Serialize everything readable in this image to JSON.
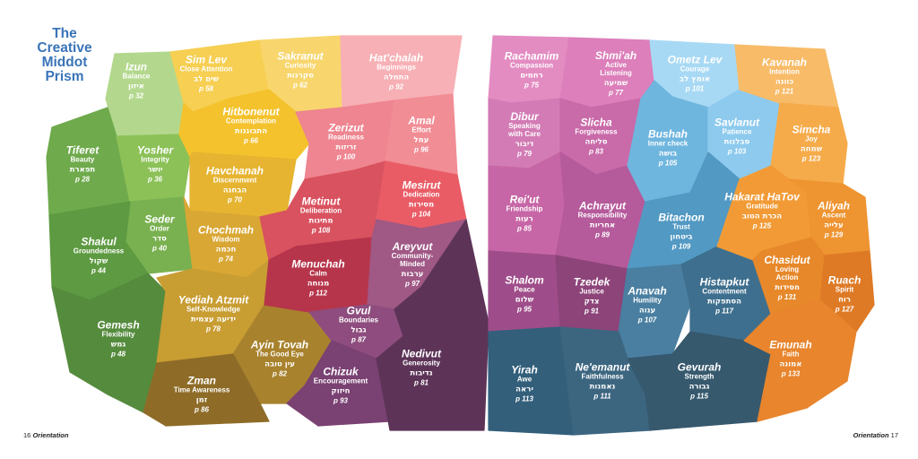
{
  "title_lines": [
    "The",
    "Creative",
    "Middot",
    "Prism"
  ],
  "footer": {
    "left_number": "16",
    "left_label": "Orientation",
    "right_label": "Orientation",
    "right_number": "17"
  },
  "cells": [
    {
      "id": "izun",
      "name": "Izun",
      "english": [
        "Balance"
      ],
      "hebrew": "איזון",
      "page": "p 32",
      "color": "#b3d88d"
    },
    {
      "id": "tiferet",
      "name": "Tiferet",
      "english": [
        "Beauty"
      ],
      "hebrew": "תפארת",
      "page": "p 28",
      "color": "#6faa4c"
    },
    {
      "id": "yosher",
      "name": "Yosher",
      "english": [
        "Integrity"
      ],
      "hebrew": "יושר",
      "page": "p 36",
      "color": "#8cc158"
    },
    {
      "id": "seder",
      "name": "Seder",
      "english": [
        "Order"
      ],
      "hebrew": "סדר",
      "page": "p 40",
      "color": "#79b150"
    },
    {
      "id": "shakul",
      "name": "Shakul",
      "english": [
        "Groundedness"
      ],
      "hebrew": "שקול",
      "page": "p 44",
      "color": "#5d9a41"
    },
    {
      "id": "gemesh",
      "name": "Gemesh",
      "english": [
        "Flexibility"
      ],
      "hebrew": "גמש",
      "page": "p 48",
      "color": "#558b3d"
    },
    {
      "id": "simlev",
      "name": "Sim Lev",
      "english": [
        "Close Attention"
      ],
      "hebrew": "שים לב",
      "page": "p 58",
      "color": "#f6cf53"
    },
    {
      "id": "sakranut",
      "name": "Sakranut",
      "english": [
        "Curiosity"
      ],
      "hebrew": "סקרנות",
      "page": "p 62",
      "color": "#f8d66d"
    },
    {
      "id": "hitbonenut",
      "name": "Hitbonenut",
      "english": [
        "Contemplation"
      ],
      "hebrew": "התבוננות",
      "page": "p 66",
      "color": "#f4c22d"
    },
    {
      "id": "havchanah",
      "name": "Havchanah",
      "english": [
        "Discernment"
      ],
      "hebrew": "הבחנה",
      "page": "p 70",
      "color": "#e6b431"
    },
    {
      "id": "chochmah",
      "name": "Chochmah",
      "english": [
        "Wisdom"
      ],
      "hebrew": "חכמה",
      "page": "p 74",
      "color": "#d9a734"
    },
    {
      "id": "yediah",
      "name": "Yediah Atzmit",
      "english": [
        "Self-Knowledge"
      ],
      "hebrew": "ידיעה עצמית",
      "page": "p 78",
      "color": "#c89d32"
    },
    {
      "id": "ayintovah",
      "name": "Ayin Tovah",
      "english": [
        "The Good Eye"
      ],
      "hebrew": "עין טובה",
      "page": "p 82",
      "color": "#a8822d"
    },
    {
      "id": "zman",
      "name": "Zman",
      "english": [
        "Time Awareness"
      ],
      "hebrew": "זמן",
      "page": "p 86",
      "color": "#8e6c27"
    },
    {
      "id": "hatchalah",
      "name": "Hat'chalah",
      "english": [
        "Beginnings"
      ],
      "hebrew": "התחלה",
      "page": "p 92",
      "color": "#f7b0b5"
    },
    {
      "id": "zerizut",
      "name": "Zerizut",
      "english": [
        "Readiness"
      ],
      "hebrew": "זריזות",
      "page": "p 100",
      "color": "#ee8590"
    },
    {
      "id": "amal",
      "name": "Amal",
      "english": [
        "Effort"
      ],
      "hebrew": "עמל",
      "page": "p 96",
      "color": "#f18d95"
    },
    {
      "id": "metinut",
      "name": "Metinut",
      "english": [
        "Deliberation"
      ],
      "hebrew": "מתינות",
      "page": "p 108",
      "color": "#d9525f"
    },
    {
      "id": "mesirut",
      "name": "Mesirut",
      "english": [
        "Dedication"
      ],
      "hebrew": "מסירות",
      "page": "p 104",
      "color": "#e95c66"
    },
    {
      "id": "menuchah",
      "name": "Menuchah",
      "english": [
        "Calm"
      ],
      "hebrew": "מנוחה",
      "page": "p 112",
      "color": "#b6354b"
    },
    {
      "id": "areyvut",
      "name": "Areyvut",
      "english": [
        "Community-",
        "Minded"
      ],
      "hebrew": "ערבות",
      "page": "p 97",
      "color": "#a05885"
    },
    {
      "id": "gvul",
      "name": "Gvul",
      "english": [
        "Boundaries"
      ],
      "hebrew": "גבול",
      "page": "p 87",
      "color": "#8e4d7e"
    },
    {
      "id": "chizuk",
      "name": "Chizuk",
      "english": [
        "Encouragement"
      ],
      "hebrew": "חיזוק",
      "page": "p 93",
      "color": "#7a4173"
    },
    {
      "id": "nedivut",
      "name": "Nedivut",
      "english": [
        "Generosity"
      ],
      "hebrew": "נדיבות",
      "page": "p 81",
      "color": "#5d3458"
    },
    {
      "id": "rachamim",
      "name": "Rachamim",
      "english": [
        "Compassion"
      ],
      "hebrew": "רחמים",
      "page": "p 75",
      "color": "#e38cc2"
    },
    {
      "id": "shmiah",
      "name": "Shmi'ah",
      "english": [
        "Active",
        "Listening"
      ],
      "hebrew": "שמיעה",
      "page": "p 77",
      "color": "#dc7fba"
    },
    {
      "id": "dibur",
      "name": "Dibur",
      "english": [
        "Speaking",
        "with Care"
      ],
      "hebrew": "דיבור",
      "page": "p 79",
      "color": "#d37bb5"
    },
    {
      "id": "slicha",
      "name": "Slicha",
      "english": [
        "Forgiveness"
      ],
      "hebrew": "סליחה",
      "page": "p 83",
      "color": "#c96aa9"
    },
    {
      "id": "reiut",
      "name": "Rei'ut",
      "english": [
        "Friendship"
      ],
      "hebrew": "רעות",
      "page": "p 85",
      "color": "#c766a6"
    },
    {
      "id": "achrayut",
      "name": "Achrayut",
      "english": [
        "Responsibility"
      ],
      "hebrew": "אחריות",
      "page": "p 89",
      "color": "#b55a9b"
    },
    {
      "id": "shalom",
      "name": "Shalom",
      "english": [
        "Peace"
      ],
      "hebrew": "שלום",
      "page": "p 95",
      "color": "#9f4d8a"
    },
    {
      "id": "tzedek",
      "name": "Tzedek",
      "english": [
        "Justice"
      ],
      "hebrew": "צדק",
      "page": "p 91",
      "color": "#8c4479"
    },
    {
      "id": "ometzlev",
      "name": "Ometz Lev",
      "english": [
        "Courage"
      ],
      "hebrew": "אומץ לב",
      "page": "p 101",
      "color": "#a8d9f4"
    },
    {
      "id": "bushah",
      "name": "Bushah",
      "english": [
        "Inner check"
      ],
      "hebrew": "בושה",
      "page": "p 105",
      "color": "#6fb6df"
    },
    {
      "id": "savlanut",
      "name": "Savlanut",
      "english": [
        "Patience"
      ],
      "hebrew": "סבלנות",
      "page": "p 103",
      "color": "#8dcaee"
    },
    {
      "id": "bitachon",
      "name": "Bitachon",
      "english": [
        "Trust"
      ],
      "hebrew": "ביטחון",
      "page": "p 109",
      "color": "#5299c3"
    },
    {
      "id": "anavah",
      "name": "Anavah",
      "english": [
        "Humility"
      ],
      "hebrew": "ענוה",
      "page": "p 107",
      "color": "#4a7fa1"
    },
    {
      "id": "histapkut",
      "name": "Histapkut",
      "english": [
        "Contentment"
      ],
      "hebrew": "הסתפקות",
      "page": "p 117",
      "color": "#3f6f8e"
    },
    {
      "id": "yirah",
      "name": "Yirah",
      "english": [
        "Awe"
      ],
      "hebrew": "יראה",
      "page": "p 113",
      "color": "#335f7b"
    },
    {
      "id": "neemanut",
      "name": "Ne'emanut",
      "english": [
        "Faithfulness"
      ],
      "hebrew": "נאמנות",
      "page": "p 111",
      "color": "#3c6680"
    },
    {
      "id": "gevurah",
      "name": "Gevurah",
      "english": [
        "Strength"
      ],
      "hebrew": "גבורה",
      "page": "p 115",
      "color": "#37596e"
    },
    {
      "id": "kavanah",
      "name": "Kavanah",
      "english": [
        "Intention"
      ],
      "hebrew": "כוונה",
      "page": "p 121",
      "color": "#f8bb68"
    },
    {
      "id": "simcha",
      "name": "Simcha",
      "english": [
        "Joy"
      ],
      "hebrew": "שמחה",
      "page": "p 123",
      "color": "#f6ab4a"
    },
    {
      "id": "hakarat",
      "name": "Hakarat HaTov",
      "english": [
        "Gratitude"
      ],
      "hebrew": "הכרת הטוב",
      "page": "p 125",
      "color": "#f29b36"
    },
    {
      "id": "aliyah",
      "name": "Aliyah",
      "english": [
        "Ascent"
      ],
      "hebrew": "עלייה",
      "page": "p 129",
      "color": "#ee9431"
    },
    {
      "id": "chasidut",
      "name": "Chasidut",
      "english": [
        "Loving",
        "Action"
      ],
      "hebrew": "חסידות",
      "page": "p 131",
      "color": "#e7882a"
    },
    {
      "id": "ruach",
      "name": "Ruach",
      "english": [
        "Spirit"
      ],
      "hebrew": "רוח",
      "page": "p 127",
      "color": "#de7a26"
    },
    {
      "id": "emunah",
      "name": "Emunah",
      "english": [
        "Faith"
      ],
      "hebrew": "אמונה",
      "page": "p 133",
      "color": "#e8852d"
    }
  ]
}
